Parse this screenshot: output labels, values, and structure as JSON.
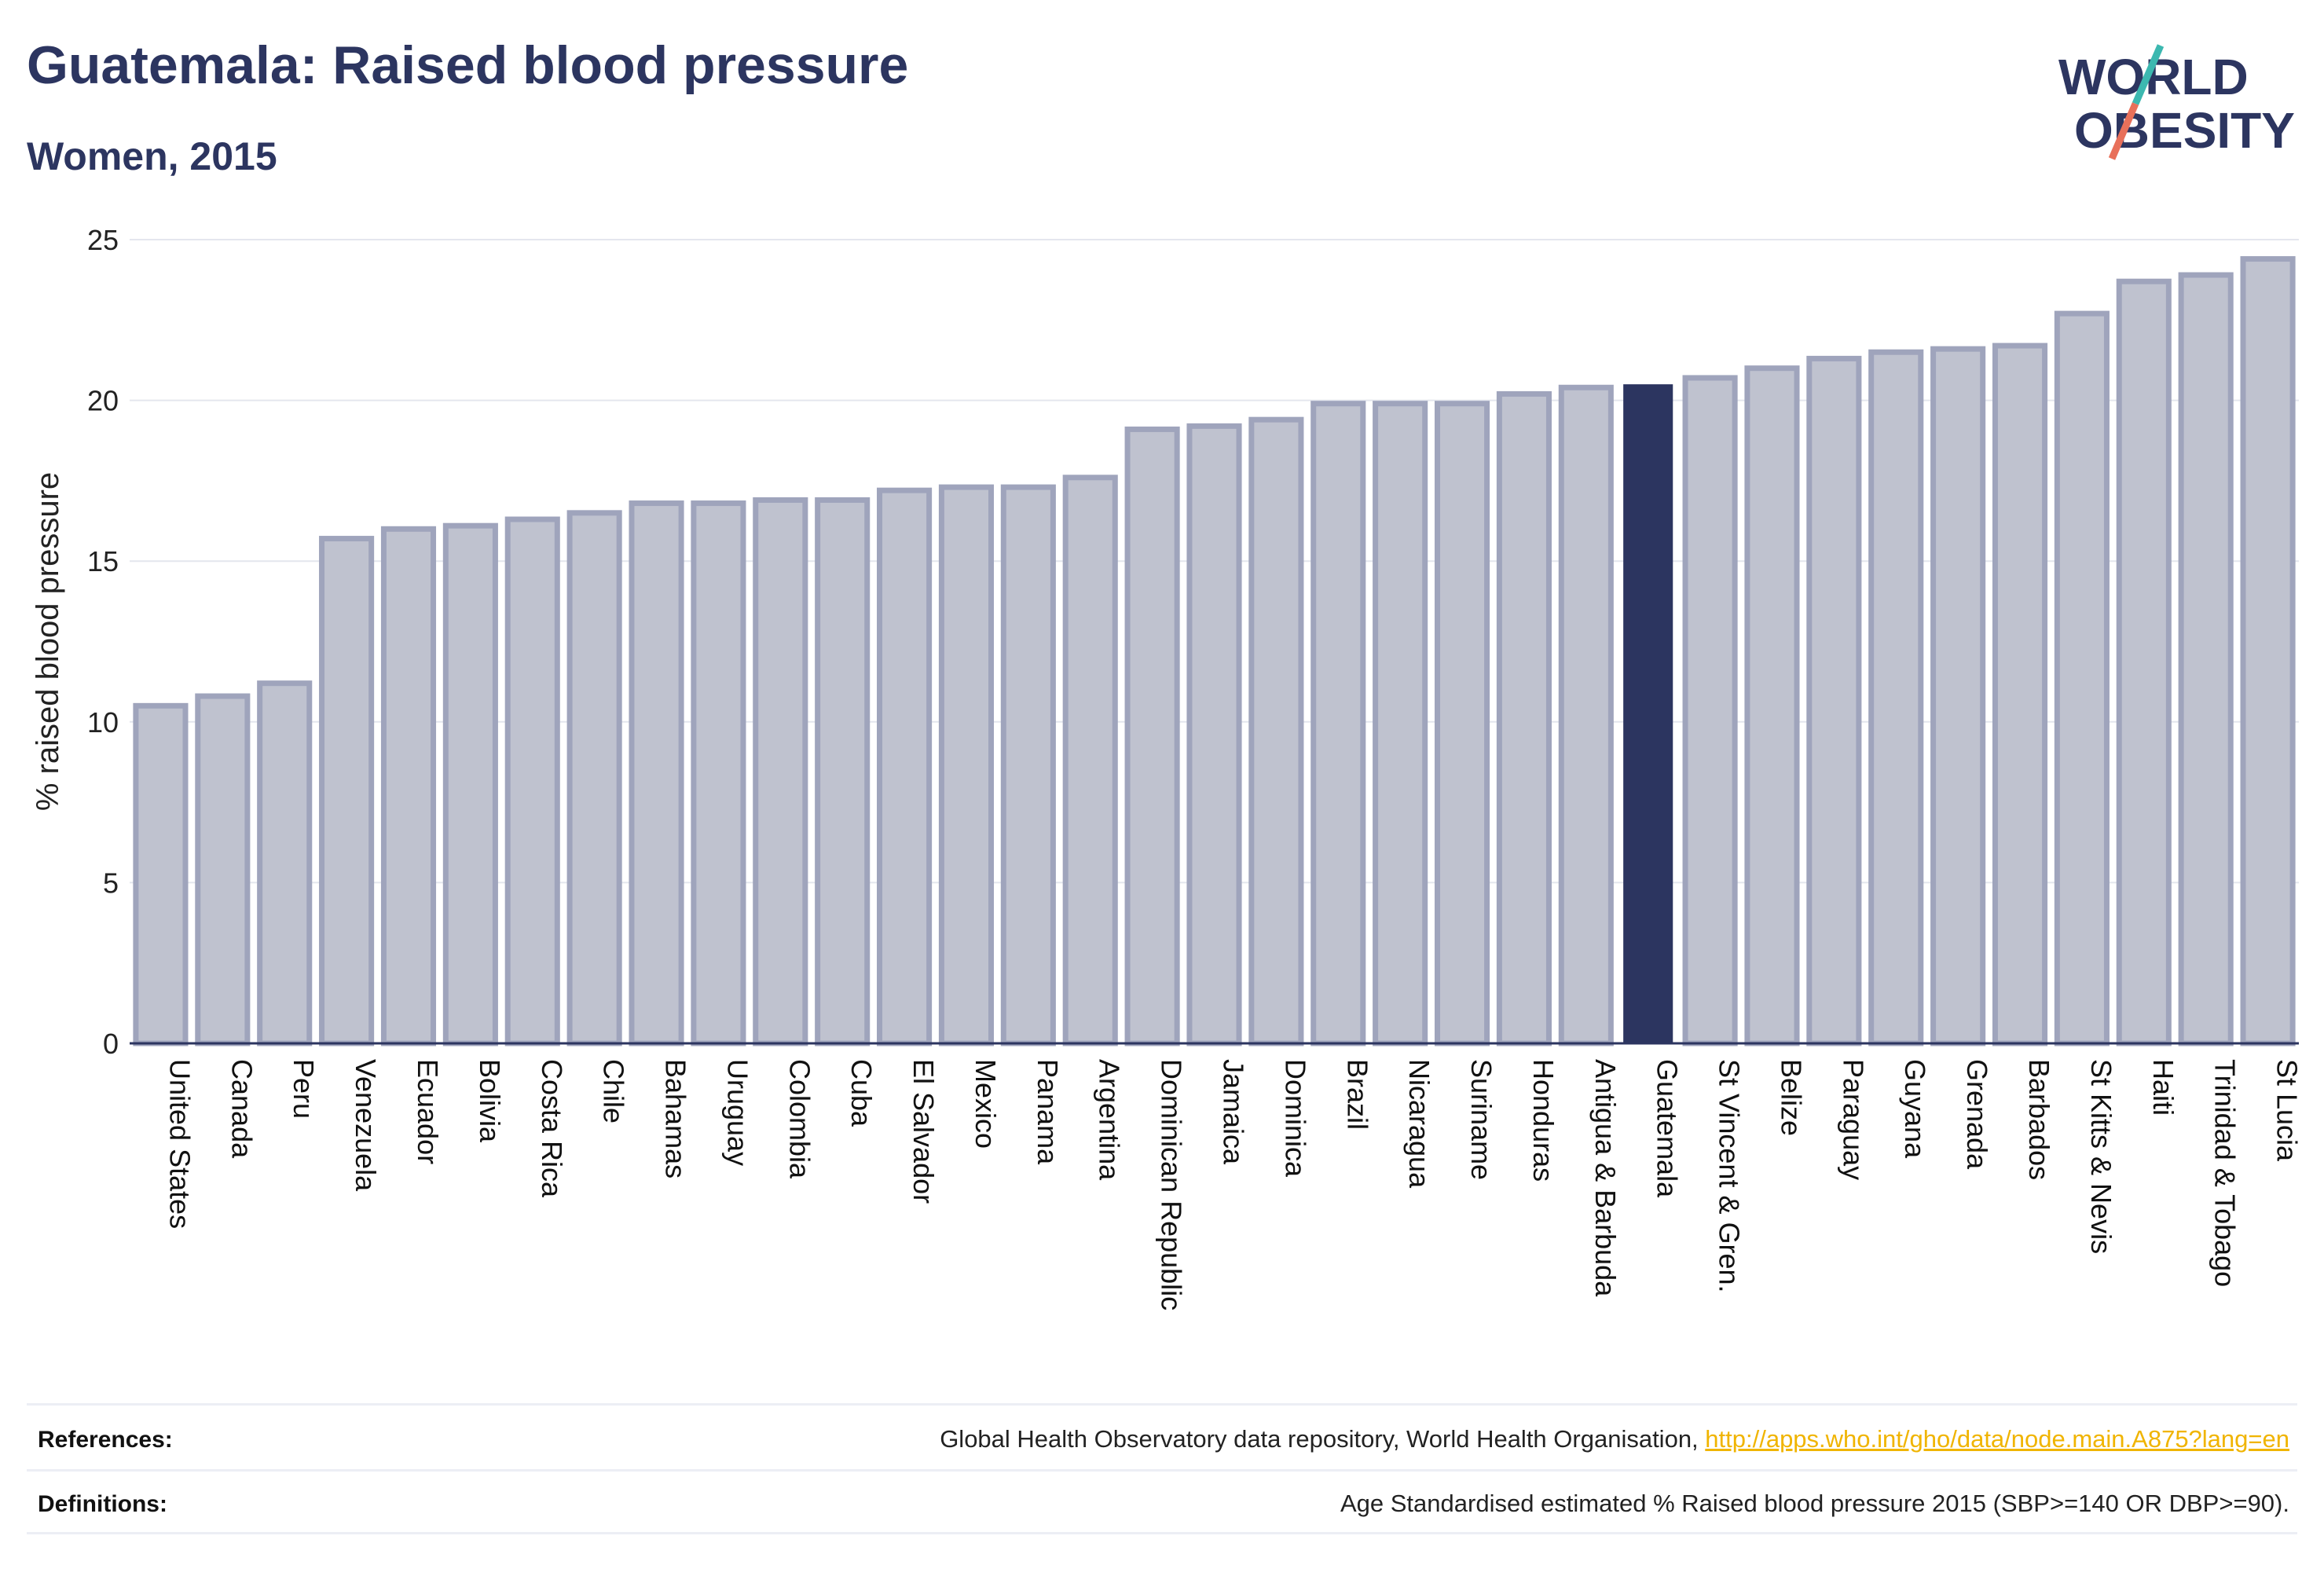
{
  "header": {
    "title": "Guatemala: Raised blood pressure",
    "subtitle": "Women, 2015"
  },
  "logo": {
    "line1": "WORLD",
    "line2": "OBESITY",
    "color_text": "#2c3560",
    "color_slash_top": "#3cb8b0",
    "color_slash_bottom": "#e8705a"
  },
  "chart_data": {
    "type": "bar",
    "ylabel": "% raised blood pressure",
    "ylim": [
      0,
      25
    ],
    "yticks": [
      0,
      5,
      10,
      15,
      20,
      25
    ],
    "grid": true,
    "highlight": "Guatemala",
    "colors": {
      "bar_fill": "#bfc2cf",
      "bar_stroke": "#9fa4bc",
      "highlight": "#2c3560",
      "grid": "#e4e6ee",
      "axis": "#2c3560"
    },
    "categories": [
      "United States",
      "Canada",
      "Peru",
      "Venezuela",
      "Ecuador",
      "Bolivia",
      "Costa Rica",
      "Chile",
      "Bahamas",
      "Uruguay",
      "Colombia",
      "Cuba",
      "El Salvador",
      "Mexico",
      "Panama",
      "Argentina",
      "Dominican Republic",
      "Jamaica",
      "Dominica",
      "Brazil",
      "Nicaragua",
      "Suriname",
      "Honduras",
      "Antigua & Barbuda",
      "Guatemala",
      "St Vincent & Gren.",
      "Belize",
      "Paraguay",
      "Guyana",
      "Grenada",
      "Barbados",
      "St Kitts & Nevis",
      "Haiti",
      "Trinidad & Tobago",
      "St Lucia"
    ],
    "values": [
      10.5,
      10.8,
      11.2,
      15.7,
      16.0,
      16.1,
      16.3,
      16.5,
      16.8,
      16.8,
      16.9,
      16.9,
      17.2,
      17.3,
      17.3,
      17.6,
      19.1,
      19.2,
      19.4,
      19.9,
      19.9,
      19.9,
      20.2,
      20.4,
      20.5,
      20.7,
      21.0,
      21.3,
      21.5,
      21.6,
      21.7,
      22.7,
      23.7,
      23.9,
      24.4
    ]
  },
  "footer": {
    "references_label": "References:",
    "references_text": "Global Health Observatory data repository, World Health Organisation, ",
    "references_link": "http://apps.who.int/gho/data/node.main.A875?lang=en",
    "definitions_label": "Definitions:",
    "definitions_text": "Age Standardised estimated % Raised blood pressure 2015 (SBP>=140 OR DBP>=90)."
  }
}
